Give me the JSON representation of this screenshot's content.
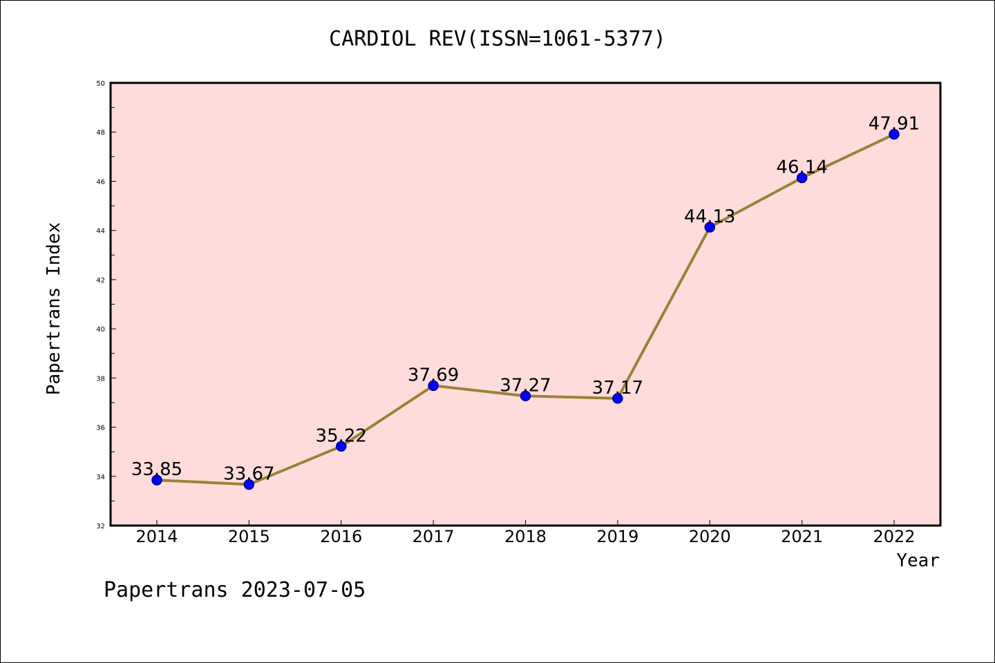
{
  "chart_data": {
    "type": "line",
    "title": "CARDIOL REV(ISSN=1061-5377)",
    "xlabel": "Year",
    "ylabel": "Papertrans Index",
    "footer": "Papertrans 2023-07-05",
    "ylim": [
      32,
      50
    ],
    "y_ticks": [
      "32",
      "34",
      "36",
      "38",
      "40",
      "42",
      "44",
      "46",
      "48",
      "50"
    ],
    "categories": [
      "2014",
      "2015",
      "2016",
      "2017",
      "2018",
      "2019",
      "2020",
      "2021",
      "2022"
    ],
    "series": [
      {
        "values": [
          33.85,
          33.67,
          35.22,
          37.69,
          37.27,
          37.17,
          44.13,
          46.14,
          47.91
        ],
        "labels": [
          "33.85",
          "33.67",
          "35.22",
          "37.69",
          "37.27",
          "37.17",
          "44.13",
          "46.14",
          "47.91"
        ]
      }
    ],
    "grid": false,
    "colors": {
      "plot_background": "#ffdcdc",
      "line": "#9b8237",
      "marker": "#0000ff"
    }
  }
}
